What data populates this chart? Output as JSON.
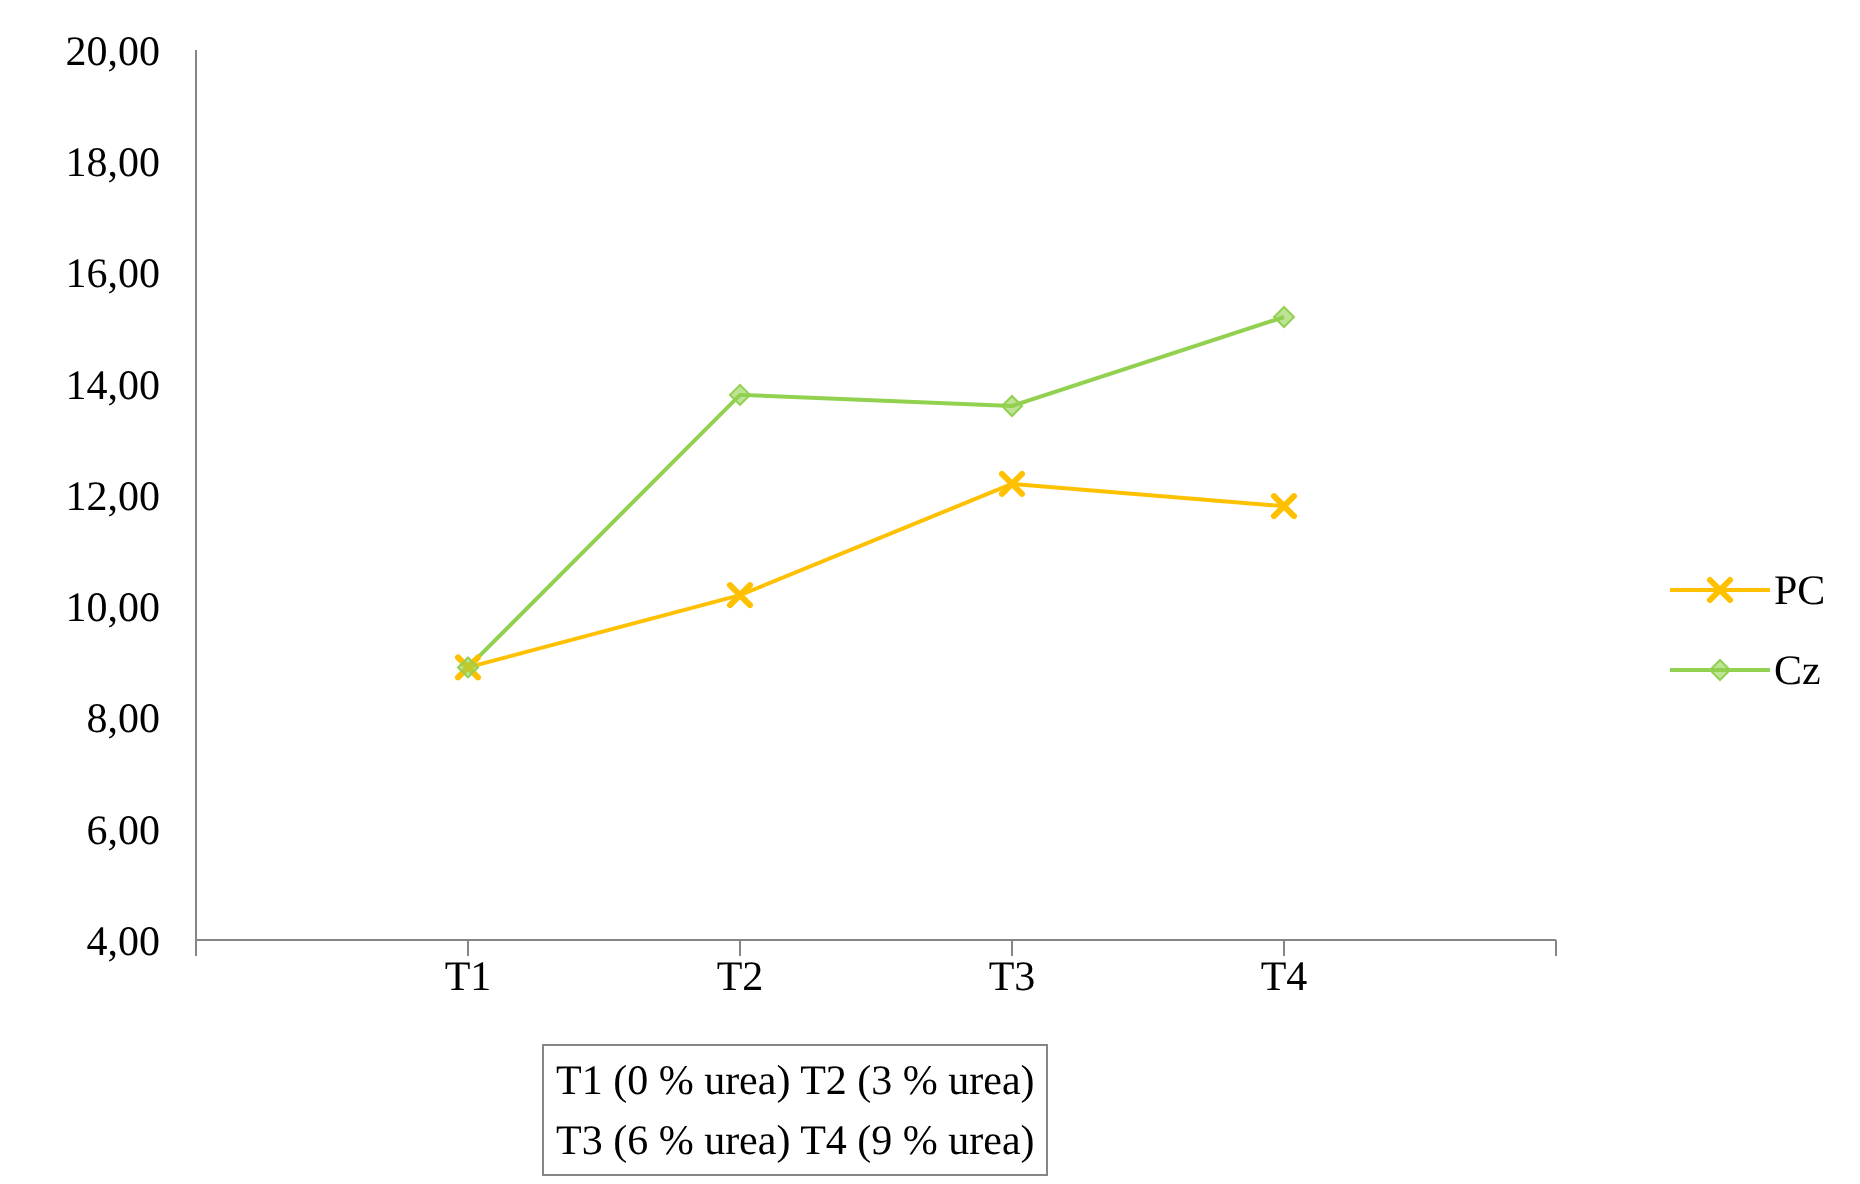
{
  "chart_data": {
    "type": "line",
    "categories": [
      null,
      "T1",
      "T2",
      "T3",
      "T4",
      null
    ],
    "series": [
      {
        "name": "PC",
        "color": "#ffc000",
        "marker": "cross",
        "values": [
          null,
          8.9,
          10.2,
          12.2,
          11.8,
          null
        ]
      },
      {
        "name": "Cz",
        "color": "#92d050",
        "marker": "diamond",
        "values": [
          null,
          8.9,
          13.8,
          13.6,
          15.2,
          null
        ]
      }
    ],
    "ylim": [
      4,
      20
    ],
    "yticks": [
      {
        "value": 4,
        "label": "4,00"
      },
      {
        "value": 6,
        "label": "6,00"
      },
      {
        "value": 8,
        "label": "8,00"
      },
      {
        "value": 10,
        "label": "10,00"
      },
      {
        "value": 12,
        "label": "12,00"
      },
      {
        "value": 14,
        "label": "14,00"
      },
      {
        "value": 16,
        "label": "16,00"
      },
      {
        "value": 18,
        "label": "18,00"
      },
      {
        "value": 20,
        "label": "20,00"
      }
    ],
    "grid": false,
    "legend": "right",
    "annotations": [
      "T1 (0 % urea) T2 (3 % urea)",
      "T3 (6 % urea) T4 (9 % urea)"
    ]
  }
}
